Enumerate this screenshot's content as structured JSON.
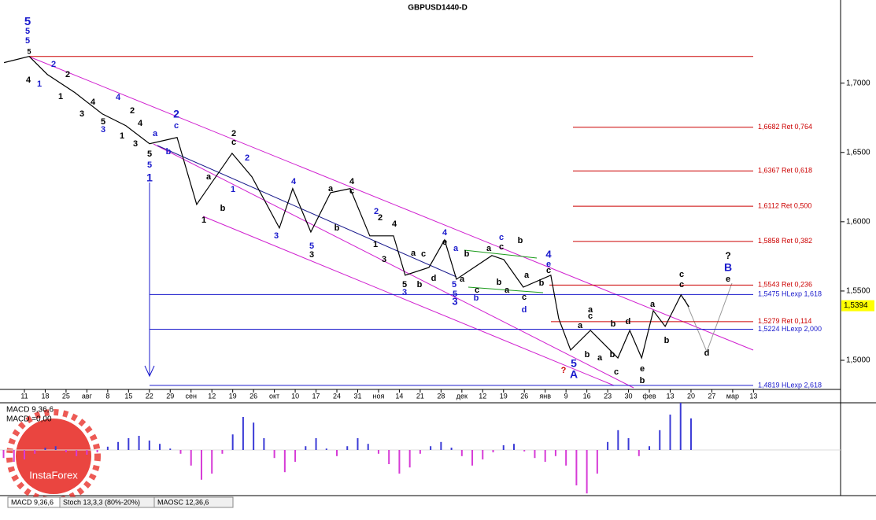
{
  "chart_data": [
    {
      "type": "line",
      "title": "GBPUSD1440-D",
      "color": "#000000",
      "x": [
        -0.98,
        0.23,
        1.1,
        2.42,
        3.74,
        4.87,
        6.01,
        7.33,
        8.27,
        9.97,
        10.92,
        12.24,
        12.88,
        13.75,
        14.7,
        15.64,
        16.58,
        17.72,
        18.28,
        19.42,
        20.17,
        20.74,
        22.44,
        23.01,
        23.95,
        25.27,
        25.65,
        26.22,
        27.17,
        28.49,
        29.06,
        29.63,
        30.19,
        30.76,
        31.52,
        31.9
      ],
      "values": [
        1.7148,
        1.7193,
        1.7063,
        1.6932,
        1.6778,
        1.6693,
        1.6563,
        1.6608,
        1.6125,
        1.6494,
        1.6324,
        1.5955,
        1.6239,
        1.5926,
        1.621,
        1.6239,
        1.5898,
        1.5898,
        1.5614,
        1.567,
        1.5869,
        1.5585,
        1.5756,
        1.5727,
        1.5528,
        1.5614,
        1.5301,
        1.5074,
        1.5216,
        1.5017,
        1.5216,
        1.5017,
        1.5358,
        1.5245,
        1.5472,
        1.5386
      ],
      "xlim": [
        -1.171,
        39.18
      ],
      "xticks": [
        {
          "value": 0,
          "label": "11"
        },
        {
          "value": 1,
          "label": "18"
        },
        {
          "value": 2,
          "label": "25"
        },
        {
          "value": 3,
          "label": "авг"
        },
        {
          "value": 4,
          "label": "8"
        },
        {
          "value": 5,
          "label": "15"
        },
        {
          "value": 6,
          "label": "22"
        },
        {
          "value": 7,
          "label": "29"
        },
        {
          "value": 8,
          "label": "сен"
        },
        {
          "value": 9,
          "label": "12"
        },
        {
          "value": 10,
          "label": "19"
        },
        {
          "value": 11,
          "label": "26"
        },
        {
          "value": 12,
          "label": "окт"
        },
        {
          "value": 13,
          "label": "10"
        },
        {
          "value": 14,
          "label": "17"
        },
        {
          "value": 15,
          "label": "24"
        },
        {
          "value": 16,
          "label": "31"
        },
        {
          "value": 17,
          "label": "ноя"
        },
        {
          "value": 18,
          "label": "14"
        },
        {
          "value": 19,
          "label": "21"
        },
        {
          "value": 20,
          "label": "28"
        },
        {
          "value": 21,
          "label": "дек"
        },
        {
          "value": 22,
          "label": "12"
        },
        {
          "value": 23,
          "label": "19"
        },
        {
          "value": 24,
          "label": "26"
        },
        {
          "value": 25,
          "label": "янв"
        },
        {
          "value": 26,
          "label": "9"
        },
        {
          "value": 27,
          "label": "16"
        },
        {
          "value": 28,
          "label": "23"
        },
        {
          "value": 29,
          "label": "30"
        },
        {
          "value": 30,
          "label": "фев"
        },
        {
          "value": 31,
          "label": "13"
        },
        {
          "value": 32,
          "label": "20"
        },
        {
          "value": 33,
          "label": "27"
        },
        {
          "value": 34,
          "label": "мар"
        },
        {
          "value": 35,
          "label": "13"
        }
      ],
      "ylim": [
        1.479,
        1.76
      ],
      "yticks": [
        {
          "value": 1.7,
          "label": "1,7000"
        },
        {
          "value": 1.65,
          "label": "1,6500"
        },
        {
          "value": 1.6,
          "label": "1,6000"
        },
        {
          "value": 1.55,
          "label": "1,5500"
        },
        {
          "value": 1.5,
          "label": "1,5000"
        }
      ],
      "last_price": {
        "value": 1.5394,
        "label": "1,5394"
      },
      "levels": [
        {
          "value": 1.7193,
          "color": "#cc0000"
        },
        {
          "value": 1.6682,
          "label": "1,6682 Ret 0,764",
          "color": "#cc0000"
        },
        {
          "value": 1.6367,
          "label": "1,6367 Ret 0,618",
          "color": "#cc0000"
        },
        {
          "value": 1.6112,
          "label": "1,6112 Ret 0,500",
          "color": "#cc0000"
        },
        {
          "value": 1.5858,
          "label": "1,5858 Ret 0,382",
          "color": "#cc0000"
        },
        {
          "value": 1.5543,
          "label": "1,5543 Ret 0,236",
          "color": "#cc0000"
        },
        {
          "value": 1.5475,
          "label": "1,5475 HLexp 1,618",
          "color": "#1a1acc"
        },
        {
          "value": 1.5279,
          "label": "1,5279 Ret 0,114",
          "color": "#cc0000"
        },
        {
          "value": 1.5224,
          "label": "1,5224 HLexp 2,000",
          "color": "#1a1acc"
        },
        {
          "value": 1.4819,
          "label": "1,4819 HLexp 2,618",
          "color": "#1a1acc"
        }
      ],
      "annotations": [
        "5",
        "5",
        "5",
        "5",
        "2",
        "4",
        "1",
        "2",
        "1",
        "3",
        "4",
        "4",
        "2",
        "5",
        "3",
        "1",
        "4",
        "3",
        "a",
        "2",
        "c",
        "b",
        "5",
        "5",
        "1",
        "2",
        "c",
        "2",
        "1",
        "a",
        "b",
        "1",
        "4",
        "3",
        "5",
        "3",
        "4",
        "a",
        "c",
        "b",
        "2",
        "2",
        "4",
        "1",
        "3",
        "5",
        "3",
        "b",
        "a",
        "c",
        "d",
        "4",
        "e",
        "a",
        "5",
        "5",
        "3",
        "b",
        "b",
        "a",
        "c",
        "a",
        "c",
        "c",
        "b",
        "b",
        "a",
        "c",
        "d",
        "a",
        "b",
        "4",
        "e",
        "c",
        "5",
        "A",
        "?",
        "a",
        "c",
        "a",
        "b",
        "d",
        "b",
        "a",
        "b",
        "c",
        "e",
        "b",
        "a",
        "b",
        "c",
        "c",
        "?",
        "B",
        "e",
        "d"
      ]
    },
    {
      "type": "bar",
      "title": "MACD 9,36,6",
      "subtitle": "MACD =0,00",
      "color_up": "#3b3bd6",
      "color_down": "#d63bd6",
      "x": [
        -1,
        -0.5,
        0,
        0.5,
        1,
        1.5,
        2,
        2.5,
        3,
        3.5,
        4,
        4.5,
        5,
        5.5,
        6,
        6.5,
        7,
        7.5,
        8,
        8.5,
        9,
        9.5,
        10,
        10.5,
        11,
        11.5,
        12,
        12.5,
        13,
        13.5,
        14,
        14.5,
        15,
        15.5,
        16,
        16.5,
        17,
        17.5,
        18,
        18.5,
        19,
        19.5,
        20,
        20.5,
        21,
        21.5,
        22,
        22.5,
        23,
        23.5,
        24,
        24.5,
        25,
        25.5,
        26,
        26.5,
        27,
        27.5,
        28,
        28.5,
        29,
        29.5,
        30,
        30.5,
        31,
        31.5,
        32
      ],
      "values": [
        -0.0017,
        -0.0025,
        -0.002,
        -0.0008,
        0.0005,
        0.0008,
        -0.0005,
        -0.0013,
        -0.001,
        -0.0005,
        0.0007,
        0.0017,
        0.0025,
        0.003,
        0.002,
        0.0013,
        0.0003,
        -0.0008,
        -0.0033,
        -0.0063,
        -0.005,
        -0.0008,
        0.0033,
        0.007,
        0.0058,
        0.0025,
        -0.0017,
        -0.0047,
        -0.0025,
        0.0008,
        0.0025,
        0.0003,
        -0.0013,
        0.0008,
        0.0025,
        0.0013,
        -0.0008,
        -0.003,
        -0.005,
        -0.0037,
        -0.0008,
        0.0008,
        0.0017,
        0.0005,
        -0.0013,
        -0.0033,
        -0.002,
        -0.0005,
        0.001,
        0.0013,
        -0.0003,
        -0.0017,
        -0.0025,
        -0.0013,
        -0.0033,
        -0.0075,
        -0.0092,
        -0.005,
        0.0017,
        0.0042,
        0.0025,
        -0.0013,
        0.0008,
        0.0042,
        0.0075,
        0.01,
        0.0067
      ]
    }
  ],
  "tabs": [
    "MACD 9,36,6",
    "Stoch 13,3,3 (80%-20%)",
    "MAOSC 12,36,6"
  ],
  "watermark": "InstaForex"
}
